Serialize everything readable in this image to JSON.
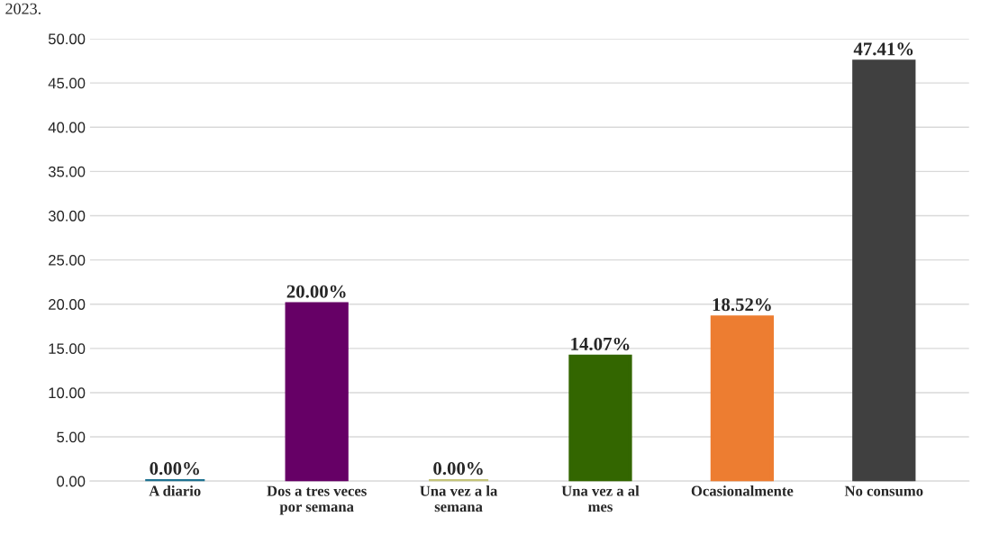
{
  "chart_data": {
    "type": "bar",
    "categories": [
      "A diario",
      "Dos a tres veces\npor semana",
      "Una vez a la\nsemana",
      "Una vez a al\nmes",
      "Ocasionalmente",
      "No consumo"
    ],
    "values": [
      0,
      20,
      0,
      14.07,
      18.52,
      47.41
    ],
    "colors": [
      "#1f7391",
      "#660066",
      "#c4c47a",
      "#336600",
      "#ed7d31",
      "#404040"
    ],
    "value_labels": [
      "0.00%",
      "20.00%",
      "0.00%",
      "14.07%",
      "18.52%",
      "47.41%"
    ],
    "ylim": [
      0,
      50
    ],
    "yticks": [
      {
        "value": 0,
        "label": "0.00"
      },
      {
        "value": 5,
        "label": "5.00"
      },
      {
        "value": 10,
        "label": "10.00"
      },
      {
        "value": 15,
        "label": "15.00"
      },
      {
        "value": 20,
        "label": "20.00"
      },
      {
        "value": 25,
        "label": "25.00"
      },
      {
        "value": 30,
        "label": "30.00"
      },
      {
        "value": 35,
        "label": "35.00"
      },
      {
        "value": 40,
        "label": "40.00"
      },
      {
        "value": 45,
        "label": "45.00"
      },
      {
        "value": 50,
        "label": "50.00"
      }
    ],
    "grid": "y",
    "annotations": [
      "2023."
    ]
  }
}
